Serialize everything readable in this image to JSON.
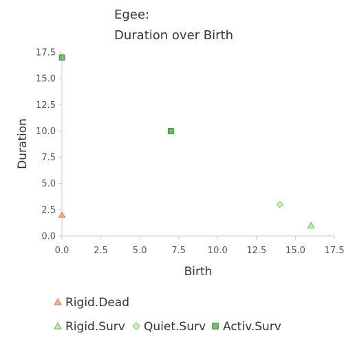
{
  "chart_data": {
    "type": "scatter",
    "title": "Egee:",
    "subtitle": "Duration over Birth",
    "xlabel": "Birth",
    "ylabel": "Duration",
    "xlim": [
      0,
      17.5
    ],
    "ylim": [
      0,
      17.5
    ],
    "xticks": [
      "0.0",
      "2.5",
      "5.0",
      "7.5",
      "10.0",
      "12.5",
      "15.0",
      "17.5"
    ],
    "yticks": [
      "0.0",
      "2.5",
      "5.0",
      "7.5",
      "10.0",
      "12.5",
      "15.0",
      "17.5"
    ],
    "grid": false,
    "legend_position": "bottom-left",
    "series": [
      {
        "name": "Rigid.Dead",
        "marker": "triangle",
        "color": "#f4a582",
        "stroke": "#e8784f",
        "points": [
          {
            "x": 0,
            "y": 2
          }
        ]
      },
      {
        "name": "Rigid.Surv",
        "marker": "triangle",
        "color": "#b8e3a8",
        "stroke": "#6cbf5a",
        "points": [
          {
            "x": 16,
            "y": 1
          },
          {
            "x": 7,
            "y": 10
          }
        ]
      },
      {
        "name": "Quiet.Surv",
        "marker": "diamond",
        "color": "#c9eeb5",
        "stroke": "#7fcf62",
        "points": [
          {
            "x": 14,
            "y": 3
          },
          {
            "x": 7,
            "y": 10
          }
        ]
      },
      {
        "name": "Activ.Surv",
        "marker": "square",
        "color": "#5cb85c",
        "stroke": "#2e8b2e",
        "points": [
          {
            "x": 0,
            "y": 17
          },
          {
            "x": 7,
            "y": 10
          }
        ]
      }
    ]
  }
}
